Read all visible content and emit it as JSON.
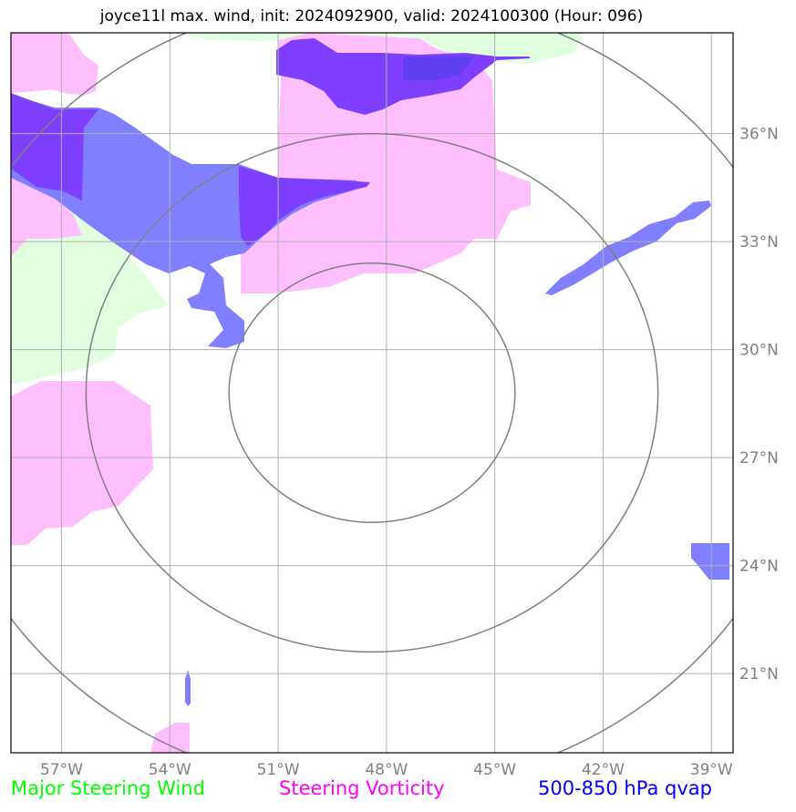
{
  "title": "joyce11l max. wind, init: 2024092900, valid: 2024100300 (Hour: 096)",
  "map": {
    "lon_range": [
      -58.4,
      -38.4
    ],
    "lat_range": [
      18.8,
      38.8
    ],
    "lon_ticks": [
      {
        "value": -57,
        "label": "57°W"
      },
      {
        "value": -54,
        "label": "54°W"
      },
      {
        "value": -51,
        "label": "51°W"
      },
      {
        "value": -48,
        "label": "48°W"
      },
      {
        "value": -45,
        "label": "45°W"
      },
      {
        "value": -42,
        "label": "42°W"
      },
      {
        "value": -39,
        "label": "39°W"
      }
    ],
    "lat_ticks": [
      {
        "value": 36,
        "label": "36°N"
      },
      {
        "value": 33,
        "label": "33°N"
      },
      {
        "value": 30,
        "label": "30°N"
      },
      {
        "value": 27,
        "label": "27°N"
      },
      {
        "value": 24,
        "label": "24°N"
      },
      {
        "value": 21,
        "label": "21°N"
      }
    ],
    "gridlines": true,
    "range_rings": {
      "center": {
        "lon": -48.4,
        "lat": 28.8
      },
      "radii_deg": [
        3,
        6,
        9.2
      ]
    }
  },
  "colors": {
    "major_steering_wind": "#00ff00",
    "steering_vorticity": "#ff00ff",
    "qvap": "#0000ff",
    "wind_fill": "#dfffdf",
    "vorticity_fill": "#ffbfff",
    "qvap_fill": "#7f7fff",
    "qvap_strong_fill": "#7f3fff",
    "grid": "#b0b0b0",
    "rings": "#808080"
  },
  "legend": [
    {
      "key": "wind",
      "label": "Major Steering Wind",
      "color": "#00ff00"
    },
    {
      "key": "vort",
      "label": "Steering Vorticity",
      "color": "#ff00ff"
    },
    {
      "key": "qvap",
      "label": "500-850 hPa qvap",
      "color": "#0000ff"
    }
  ]
}
